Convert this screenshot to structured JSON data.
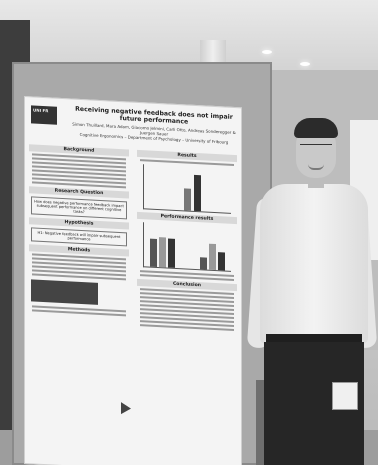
{
  "poster": {
    "title": "Receiving negative feedback does not impair future performance",
    "authors": "Simon Thuillard, Mara Adam, Giacomo Jelmini, Carli Otto, Andreas Sonderegger & Juergen Sauer",
    "affiliation": "Cognitive Ergonomics – Department of Psychology – University of Fribourg",
    "logo": "UNI FR",
    "sections_left": [
      "Background",
      "Research Question",
      "Hypothesis",
      "Methods"
    ],
    "sections_right": [
      "Results",
      "Performance results",
      "Conclusion"
    ],
    "research_question": "How does negative performance feedback impact subsequent performance on different cognitive tasks?",
    "hypothesis": "H1: Negative feedback will impair subsequent performance"
  }
}
